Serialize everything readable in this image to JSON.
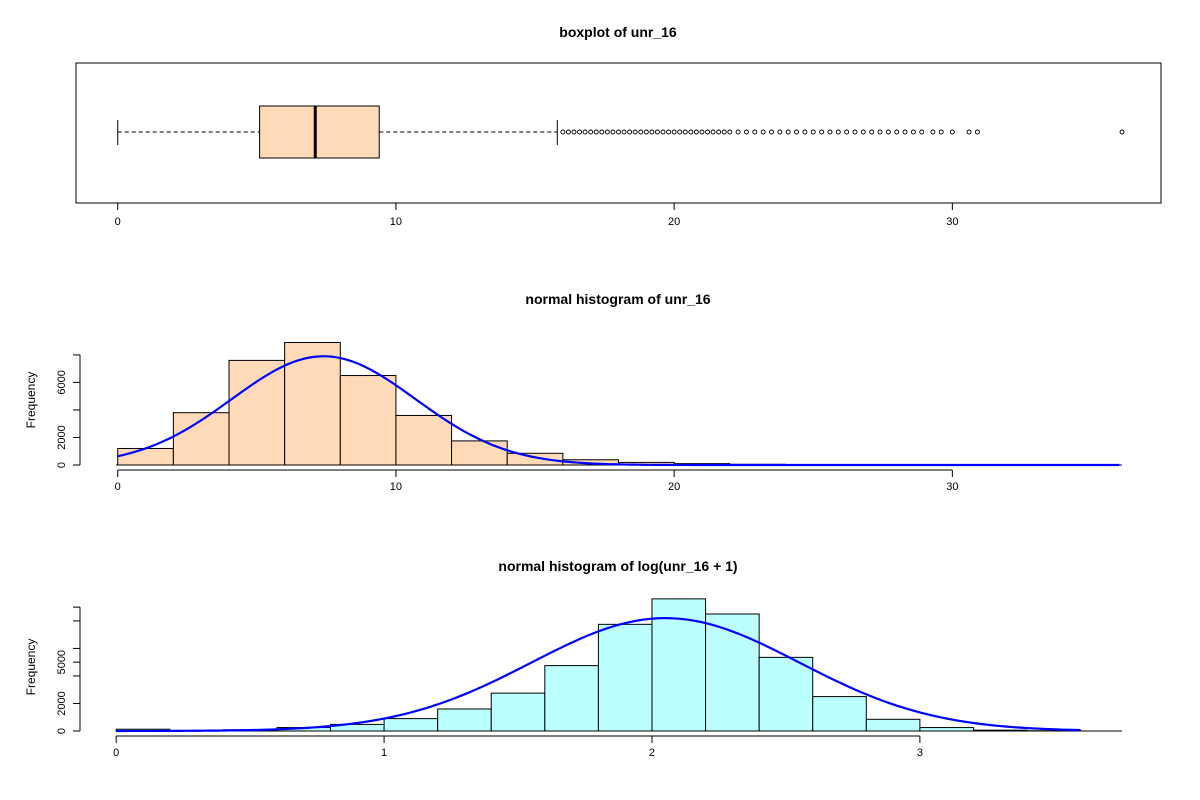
{
  "chart_data": [
    {
      "type": "boxplot",
      "title": "boxplot of unr_16",
      "orientation": "horizontal",
      "xlim": [
        -1.5,
        37.5
      ],
      "xticks": [
        0,
        10,
        20,
        30
      ],
      "fill_color": "#FFDAB9",
      "whisker_low": 0,
      "q1": 5.1,
      "median": 7.1,
      "q3": 9.4,
      "whisker_high": 15.8,
      "outliers": [
        16.0,
        16.2,
        16.4,
        16.6,
        16.8,
        17.0,
        17.2,
        17.4,
        17.6,
        17.8,
        18.0,
        18.2,
        18.4,
        18.6,
        18.8,
        19.0,
        19.2,
        19.4,
        19.6,
        19.8,
        20.0,
        20.2,
        20.4,
        20.6,
        20.8,
        21.0,
        21.2,
        21.4,
        21.6,
        21.8,
        22.0,
        22.3,
        22.6,
        22.9,
        23.2,
        23.5,
        23.8,
        24.1,
        24.4,
        24.7,
        25.0,
        25.3,
        25.6,
        25.9,
        26.2,
        26.5,
        26.8,
        27.1,
        27.4,
        27.7,
        28.0,
        28.3,
        28.6,
        28.9,
        29.3,
        29.6,
        30.0,
        30.6,
        30.9,
        36.1
      ]
    },
    {
      "type": "histogram",
      "title": "normal histogram of unr_16",
      "ylabel": "Frequency",
      "fill_color": "#FFDAB9",
      "curve_color": "#0000FF",
      "xlim": [
        -1.5,
        37.5
      ],
      "ylim": [
        0,
        9300
      ],
      "xticks": [
        0,
        10,
        20,
        30
      ],
      "yticks": [
        0,
        2000,
        4000,
        6000,
        8000
      ],
      "ytick_labels": [
        "0",
        "2000",
        "",
        "6000",
        ""
      ],
      "bin_edges": [
        0,
        2,
        4,
        6,
        8,
        10,
        12,
        14,
        16,
        18,
        20,
        22,
        24,
        26,
        28,
        30,
        32,
        34,
        36
      ],
      "counts": [
        1200,
        3800,
        7600,
        8900,
        6500,
        3600,
        1750,
        850,
        380,
        190,
        100,
        50,
        30,
        20,
        15,
        10,
        5,
        5
      ],
      "normal_curve": {
        "mean": 7.4,
        "sd": 3.3,
        "peak": 7900,
        "x_range": [
          0,
          36
        ]
      }
    },
    {
      "type": "histogram",
      "title": "normal histogram of log(unr_16 + 1)",
      "ylabel": "Frequency",
      "fill_color": "#BBFFFF",
      "curve_color": "#0000FF",
      "xlim": [
        -0.15,
        3.9
      ],
      "ylim": [
        0,
        9300
      ],
      "xticks": [
        0,
        1,
        2,
        3
      ],
      "yticks": [
        0,
        2000,
        4000,
        5000,
        6000,
        8000,
        9000
      ],
      "ytick_labels": [
        "0",
        "2000",
        "",
        "5000",
        "",
        "",
        ""
      ],
      "bin_edges": [
        0,
        0.2,
        0.4,
        0.6,
        0.8,
        1.0,
        1.2,
        1.4,
        1.6,
        1.8,
        2.0,
        2.2,
        2.4,
        2.6,
        2.8,
        3.0,
        3.2,
        3.4,
        3.6
      ],
      "counts": [
        130,
        40,
        90,
        250,
        480,
        900,
        1600,
        2750,
        4750,
        7750,
        9600,
        8500,
        5350,
        2500,
        850,
        250,
        60,
        20
      ],
      "normal_curve": {
        "mean": 2.05,
        "sd": 0.5,
        "peak": 8200,
        "x_range": [
          0,
          3.6
        ]
      }
    }
  ]
}
